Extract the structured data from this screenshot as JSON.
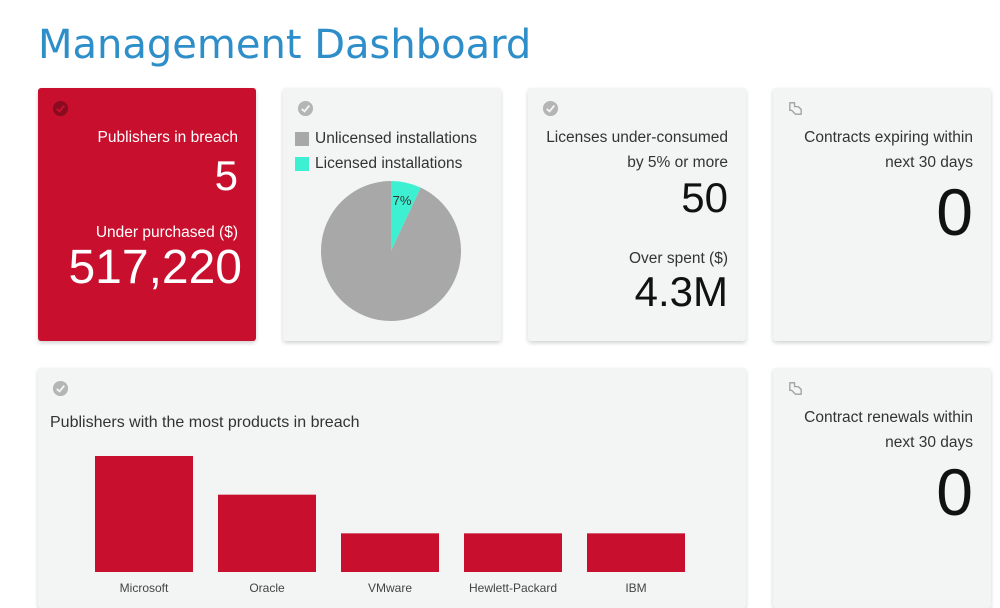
{
  "page": {
    "title": "Management Dashboard"
  },
  "tiles": {
    "breach": {
      "label1": "Publishers in breach",
      "value1": "5",
      "label2": "Under purchased ($)",
      "value2": "517,220"
    },
    "installations": {
      "legend": [
        {
          "label": "Unlicensed installations",
          "color": "#a8a8a8"
        },
        {
          "label": "Licensed installations",
          "color": "#3ef0d2"
        }
      ],
      "pie_label": "7%"
    },
    "licenses": {
      "label1a": "Licenses under-consumed",
      "label1b": "by 5% or more",
      "value1": "50",
      "label2": "Over spent ($)",
      "value2": "4.3M"
    },
    "contracts_expiring": {
      "label_a": "Contracts expiring within",
      "label_b": "next 30 days",
      "value": "0"
    },
    "contract_renewals": {
      "label_a": "Contract renewals within",
      "label_b": "next 30 days",
      "value": "0"
    },
    "publishers_chart": {
      "title": "Publishers with the most products in breach"
    }
  },
  "colors": {
    "accent": "#2e8ec9",
    "breach_red": "#c8102e",
    "tile_bg": "#f3f4f4"
  },
  "icons": {
    "tile_status": "check-circle-icon",
    "contract": "contract-hand-icon"
  },
  "chart_data": {
    "type": "bar",
    "title": "Publishers with the most products in breach",
    "categories": [
      "Microsoft",
      "Oracle",
      "VMware",
      "Hewlett-Packard",
      "IBM"
    ],
    "values": [
      3,
      2,
      1,
      1,
      1
    ],
    "ylim": [
      0,
      3
    ],
    "grid": false,
    "color": "#c8102e"
  },
  "pie_data": {
    "type": "pie",
    "slices": [
      {
        "label": "Unlicensed installations",
        "value": 93
      },
      {
        "label": "Licensed installations",
        "value": 7
      }
    ]
  }
}
